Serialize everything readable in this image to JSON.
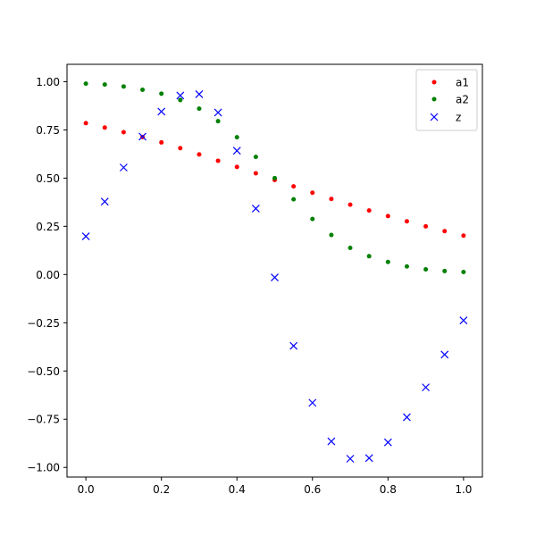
{
  "chart_data": {
    "type": "scatter",
    "title": "",
    "xlabel": "",
    "ylabel": "",
    "xlim": [
      -0.05,
      1.05
    ],
    "ylim": [
      -1.05,
      1.09
    ],
    "grid": false,
    "legend_position": "top-right",
    "x_ticks": [
      {
        "value": 0.0,
        "label": "0.0"
      },
      {
        "value": 0.2,
        "label": "0.2"
      },
      {
        "value": 0.4,
        "label": "0.4"
      },
      {
        "value": 0.6,
        "label": "0.6"
      },
      {
        "value": 0.8,
        "label": "0.8"
      },
      {
        "value": 1.0,
        "label": "1.0"
      }
    ],
    "y_ticks": [
      {
        "value": 1.0,
        "label": "1.00"
      },
      {
        "value": 0.75,
        "label": "0.75"
      },
      {
        "value": 0.5,
        "label": "0.50"
      },
      {
        "value": 0.25,
        "label": "0.25"
      },
      {
        "value": 0.0,
        "label": "0.00"
      },
      {
        "value": -0.25,
        "label": "−0.25"
      },
      {
        "value": -0.5,
        "label": "−0.50"
      },
      {
        "value": -0.75,
        "label": "−0.75"
      },
      {
        "value": -1.0,
        "label": "−1.00"
      }
    ],
    "x": [
      0.0,
      0.05,
      0.1,
      0.15,
      0.2,
      0.25,
      0.3,
      0.35,
      0.4,
      0.45,
      0.5,
      0.55,
      0.6,
      0.65,
      0.7,
      0.75,
      0.8,
      0.85,
      0.9,
      0.95,
      1.0
    ],
    "series": [
      {
        "name": "a1",
        "marker": "dot",
        "color": "#ff0000",
        "values": [
          0.785,
          0.762,
          0.738,
          0.713,
          0.685,
          0.655,
          0.623,
          0.59,
          0.558,
          0.525,
          0.49,
          0.457,
          0.424,
          0.392,
          0.362,
          0.332,
          0.303,
          0.276,
          0.25,
          0.225,
          0.202
        ]
      },
      {
        "name": "a2",
        "marker": "dot",
        "color": "#008000",
        "values": [
          0.99,
          0.985,
          0.975,
          0.958,
          0.938,
          0.905,
          0.86,
          0.795,
          0.712,
          0.61,
          0.5,
          0.39,
          0.288,
          0.205,
          0.138,
          0.095,
          0.065,
          0.042,
          0.027,
          0.018,
          0.013
        ]
      },
      {
        "name": "z",
        "marker": "x",
        "color": "#0000ff",
        "values": [
          0.198,
          0.378,
          0.555,
          0.715,
          0.845,
          0.928,
          0.935,
          0.84,
          0.642,
          0.342,
          -0.015,
          -0.37,
          -0.665,
          -0.865,
          -0.955,
          -0.952,
          -0.87,
          -0.74,
          -0.585,
          -0.415,
          -0.238
        ]
      }
    ]
  }
}
